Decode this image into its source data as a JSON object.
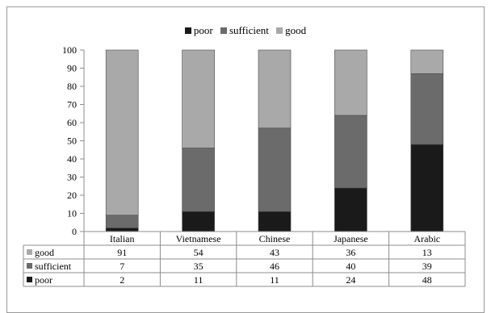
{
  "chart_data": {
    "type": "bar",
    "stacked": true,
    "categories": [
      "Italian",
      "Vietnamese",
      "Chinese",
      "Japanese",
      "Arabic"
    ],
    "series": [
      {
        "name": "poor",
        "color": "#1a1a1a",
        "values": [
          2,
          11,
          11,
          24,
          48
        ]
      },
      {
        "name": "sufficient",
        "color": "#6b6b6b",
        "values": [
          7,
          35,
          46,
          40,
          39
        ]
      },
      {
        "name": "good",
        "color": "#a9a9a9",
        "values": [
          91,
          54,
          43,
          36,
          13
        ]
      }
    ],
    "table_rows": [
      "good",
      "sufficient",
      "poor"
    ],
    "ylim": [
      0,
      100
    ],
    "yticks": [
      0,
      10,
      20,
      30,
      40,
      50,
      60,
      70,
      80,
      90,
      100
    ],
    "title": "",
    "xlabel": "",
    "ylabel": "",
    "legend_position": "top",
    "grid": false,
    "data_table": true
  }
}
